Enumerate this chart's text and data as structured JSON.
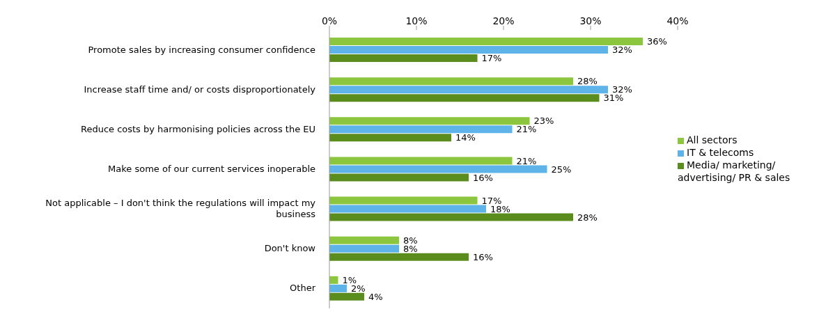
{
  "chart_data": {
    "type": "bar",
    "orientation": "horizontal",
    "categories": [
      "Promote sales by increasing consumer confidence",
      "Increase staff time and/ or costs disproportionately",
      "Reduce costs by harmonising policies across the EU",
      "Make some of our current services inoperable",
      "Not applicable – I don't think the regulations will impact my business",
      "Don't know",
      "Other"
    ],
    "series": [
      {
        "name": "All sectors",
        "color": "#8cc63e",
        "values": [
          36,
          28,
          23,
          21,
          17,
          8,
          1
        ],
        "value_labels": [
          "36%",
          "28%",
          "23%",
          "21%",
          "17%",
          "8%",
          "1%"
        ]
      },
      {
        "name": "IT & telecoms",
        "color": "#5eb3e8",
        "values": [
          32,
          32,
          21,
          25,
          18,
          8,
          2
        ],
        "value_labels": [
          "32%",
          "32%",
          "21%",
          "25%",
          "18%",
          "8%",
          "2%"
        ]
      },
      {
        "name": "Media/ marketing/ advertising/ PR & sales",
        "color": "#5b8c1e",
        "values": [
          17,
          31,
          14,
          16,
          28,
          16,
          4
        ],
        "value_labels": [
          "17%",
          "31%",
          "14%",
          "16%",
          "28%",
          "16%",
          "4%"
        ]
      }
    ],
    "xlim": [
      0,
      40
    ],
    "xticks": [
      {
        "value": 0,
        "label": "0%"
      },
      {
        "value": 10,
        "label": "10%"
      },
      {
        "value": 20,
        "label": "20%"
      },
      {
        "value": 30,
        "label": "30%"
      },
      {
        "value": 40,
        "label": "40%"
      }
    ],
    "grid": false,
    "legend": "right"
  }
}
